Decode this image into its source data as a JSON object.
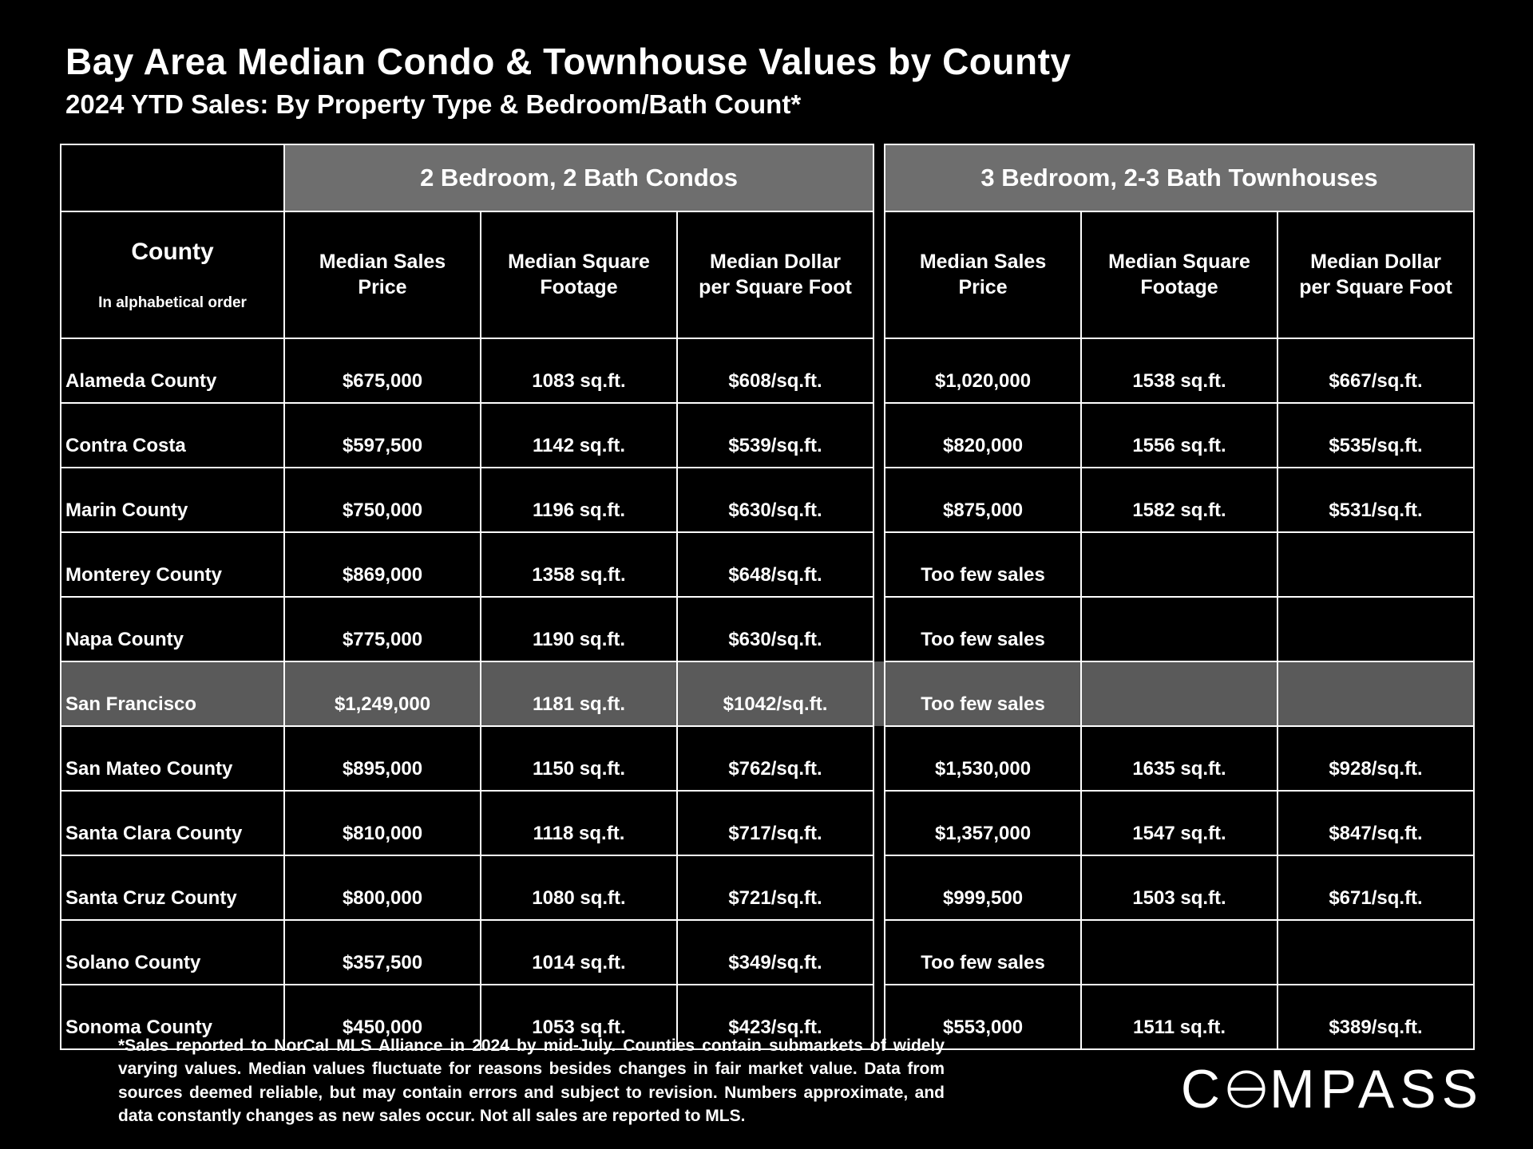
{
  "page": {
    "title": "Bay Area Median Condo & Townhouse Values by County",
    "subtitle": "2024 YTD Sales:  By Property Type & Bedroom/Bath Count*"
  },
  "table": {
    "county_header": {
      "title": "County",
      "subtitle": "In alphabetical order"
    },
    "group_headers": [
      "2 Bedroom, 2 Bath Condos",
      "3 Bedroom, 2-3 Bath Townhouses"
    ],
    "column_headers": [
      "Median Sales\nPrice",
      "Median Square\nFootage",
      "Median Dollar\nper Square Foot",
      "Median Sales\nPrice",
      "Median Square\nFootage",
      "Median Dollar\nper Square Foot"
    ],
    "rows": [
      {
        "county": "Alameda County",
        "highlight": false,
        "cells": [
          "$675,000",
          "1083 sq.ft.",
          "$608/sq.ft.",
          "$1,020,000",
          "1538 sq.ft.",
          "$667/sq.ft."
        ]
      },
      {
        "county": "Contra Costa",
        "highlight": false,
        "cells": [
          "$597,500",
          "1142 sq.ft.",
          "$539/sq.ft.",
          "$820,000",
          "1556 sq.ft.",
          "$535/sq.ft."
        ]
      },
      {
        "county": "Marin County",
        "highlight": false,
        "cells": [
          "$750,000",
          "1196 sq.ft.",
          "$630/sq.ft.",
          "$875,000",
          "1582 sq.ft.",
          "$531/sq.ft."
        ]
      },
      {
        "county": "Monterey County",
        "highlight": false,
        "cells": [
          "$869,000",
          "1358 sq.ft.",
          "$648/sq.ft.",
          "Too few sales",
          "",
          ""
        ]
      },
      {
        "county": "Napa County",
        "highlight": false,
        "cells": [
          "$775,000",
          "1190 sq.ft.",
          "$630/sq.ft.",
          "Too few sales",
          "",
          ""
        ]
      },
      {
        "county": "San Francisco",
        "highlight": true,
        "cells": [
          "$1,249,000",
          "1181 sq.ft.",
          "$1042/sq.ft.",
          "Too few sales",
          "",
          ""
        ]
      },
      {
        "county": "San Mateo County",
        "highlight": false,
        "cells": [
          "$895,000",
          "1150 sq.ft.",
          "$762/sq.ft.",
          "$1,530,000",
          "1635 sq.ft.",
          "$928/sq.ft."
        ]
      },
      {
        "county": "Santa Clara County",
        "highlight": false,
        "cells": [
          "$810,000",
          "1118 sq.ft.",
          "$717/sq.ft.",
          "$1,357,000",
          "1547 sq.ft.",
          "$847/sq.ft."
        ]
      },
      {
        "county": "Santa Cruz County",
        "highlight": false,
        "cells": [
          "$800,000",
          "1080 sq.ft.",
          "$721/sq.ft.",
          "$999,500",
          "1503 sq.ft.",
          "$671/sq.ft."
        ]
      },
      {
        "county": "Solano County",
        "highlight": false,
        "cells": [
          "$357,500",
          "1014 sq.ft.",
          "$349/sq.ft.",
          "Too few sales",
          "",
          ""
        ]
      },
      {
        "county": "Sonoma County",
        "highlight": false,
        "cells": [
          "$450,000",
          "1053 sq.ft.",
          "$423/sq.ft.",
          "$553,000",
          "1511 sq.ft.",
          "$389/sq.ft."
        ]
      }
    ]
  },
  "footnote": "*Sales reported to NorCal MLS Alliance in 2024 by mid-July. Counties contain submarkets of widely varying values. Median values fluctuate for reasons besides changes in fair market value. Data from sources deemed reliable, but may contain errors and subject to revision.  Numbers approximate, and data constantly changes as new sales occur. Not all sales are reported to MLS.",
  "logo": {
    "prefix": "C",
    "suffix": "MPASS",
    "full": "COMPASS"
  },
  "colors": {
    "background": "#000000",
    "grid": "#ffffff",
    "group_header_bg": "#6e6e6e",
    "highlight_row_bg": "#5a5a5a",
    "text": "#ffffff"
  },
  "chart_data": {
    "type": "table",
    "title": "Bay Area Median Condo & Townhouse Values by County",
    "subtitle": "2024 YTD Sales: By Property Type & Bedroom/Bath Count*",
    "column_groups": [
      {
        "label": "2 Bedroom, 2 Bath Condos",
        "columns": [
          "Median Sales Price",
          "Median Square Footage",
          "Median Dollar per Square Foot"
        ]
      },
      {
        "label": "3 Bedroom, 2-3 Bath Townhouses",
        "columns": [
          "Median Sales Price",
          "Median Square Footage",
          "Median Dollar per Square Foot"
        ]
      }
    ],
    "rows": [
      {
        "county": "Alameda County",
        "condo_2bd_2ba": {
          "median_sales_price": 675000,
          "median_sqft": 1083,
          "median_dollar_per_sqft": 608
        },
        "townhouse_3bd_2_3ba": {
          "median_sales_price": 1020000,
          "median_sqft": 1538,
          "median_dollar_per_sqft": 667
        }
      },
      {
        "county": "Contra Costa",
        "condo_2bd_2ba": {
          "median_sales_price": 597500,
          "median_sqft": 1142,
          "median_dollar_per_sqft": 539
        },
        "townhouse_3bd_2_3ba": {
          "median_sales_price": 820000,
          "median_sqft": 1556,
          "median_dollar_per_sqft": 535
        }
      },
      {
        "county": "Marin County",
        "condo_2bd_2ba": {
          "median_sales_price": 750000,
          "median_sqft": 1196,
          "median_dollar_per_sqft": 630
        },
        "townhouse_3bd_2_3ba": {
          "median_sales_price": 875000,
          "median_sqft": 1582,
          "median_dollar_per_sqft": 531
        }
      },
      {
        "county": "Monterey County",
        "condo_2bd_2ba": {
          "median_sales_price": 869000,
          "median_sqft": 1358,
          "median_dollar_per_sqft": 648
        },
        "townhouse_3bd_2_3ba": {
          "note": "Too few sales"
        }
      },
      {
        "county": "Napa County",
        "condo_2bd_2ba": {
          "median_sales_price": 775000,
          "median_sqft": 1190,
          "median_dollar_per_sqft": 630
        },
        "townhouse_3bd_2_3ba": {
          "note": "Too few sales"
        }
      },
      {
        "county": "San Francisco",
        "condo_2bd_2ba": {
          "median_sales_price": 1249000,
          "median_sqft": 1181,
          "median_dollar_per_sqft": 1042
        },
        "townhouse_3bd_2_3ba": {
          "note": "Too few sales"
        }
      },
      {
        "county": "San Mateo County",
        "condo_2bd_2ba": {
          "median_sales_price": 895000,
          "median_sqft": 1150,
          "median_dollar_per_sqft": 762
        },
        "townhouse_3bd_2_3ba": {
          "median_sales_price": 1530000,
          "median_sqft": 1635,
          "median_dollar_per_sqft": 928
        }
      },
      {
        "county": "Santa Clara County",
        "condo_2bd_2ba": {
          "median_sales_price": 810000,
          "median_sqft": 1118,
          "median_dollar_per_sqft": 717
        },
        "townhouse_3bd_2_3ba": {
          "median_sales_price": 1357000,
          "median_sqft": 1547,
          "median_dollar_per_sqft": 847
        }
      },
      {
        "county": "Santa Cruz County",
        "condo_2bd_2ba": {
          "median_sales_price": 800000,
          "median_sqft": 1080,
          "median_dollar_per_sqft": 721
        },
        "townhouse_3bd_2_3ba": {
          "median_sales_price": 999500,
          "median_sqft": 1503,
          "median_dollar_per_sqft": 671
        }
      },
      {
        "county": "Solano County",
        "condo_2bd_2ba": {
          "median_sales_price": 357500,
          "median_sqft": 1014,
          "median_dollar_per_sqft": 349
        },
        "townhouse_3bd_2_3ba": {
          "note": "Too few sales"
        }
      },
      {
        "county": "Sonoma County",
        "condo_2bd_2ba": {
          "median_sales_price": 450000,
          "median_sqft": 1053,
          "median_dollar_per_sqft": 423
        },
        "townhouse_3bd_2_3ba": {
          "median_sales_price": 553000,
          "median_sqft": 1511,
          "median_dollar_per_sqft": 389
        }
      }
    ]
  }
}
